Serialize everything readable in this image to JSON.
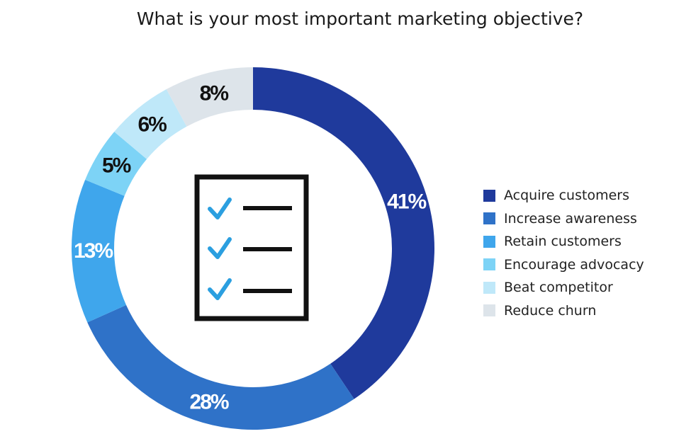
{
  "title": "What is your most important marketing objective?",
  "chart_data": {
    "type": "pie",
    "variant": "donut",
    "title": "What is your most important marketing objective?",
    "legend_position": "right",
    "slices": [
      {
        "label": "Acquire customers",
        "value": 41,
        "value_label": "41%",
        "color": "#1f3a9c",
        "text_color": "#ffffff"
      },
      {
        "label": "Increase awareness",
        "value": 28,
        "value_label": "28%",
        "color": "#2f72c8",
        "text_color": "#ffffff"
      },
      {
        "label": "Retain customers",
        "value": 13,
        "value_label": "13%",
        "color": "#3fa6ec",
        "text_color": "#ffffff"
      },
      {
        "label": "Encourage advocacy",
        "value": 5,
        "value_label": "5%",
        "color": "#7dd3f6",
        "text_color": "#111111"
      },
      {
        "label": "Beat competitor",
        "value": 6,
        "value_label": "6%",
        "color": "#bfe8f9",
        "text_color": "#111111"
      },
      {
        "label": "Reduce churn",
        "value": 8,
        "value_label": "8%",
        "color": "#dde4ea",
        "text_color": "#111111"
      }
    ]
  },
  "center_graphic": {
    "icon": "checklist-icon"
  }
}
